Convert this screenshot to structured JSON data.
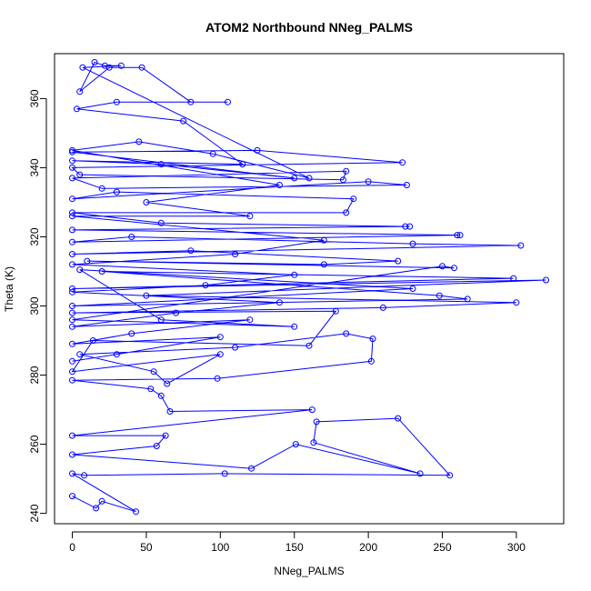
{
  "chart_data": {
    "type": "line",
    "title": "ATOM2 Northbound NNeg_PALMS",
    "xlabel": "NNeg_PALMS",
    "ylabel": "Theta (K)",
    "xlim": [
      -12,
      332
    ],
    "ylim": [
      237,
      373
    ],
    "x_ticks": [
      0,
      50,
      100,
      150,
      200,
      250,
      300
    ],
    "y_ticks": [
      240,
      260,
      280,
      300,
      320,
      340,
      360
    ],
    "grid": false,
    "legend": "none",
    "series_color": "#0000ff",
    "marker": "open-circle",
    "series": [
      {
        "values": [
          {
            "x": 0,
            "y": 245
          },
          {
            "x": 16,
            "y": 241.5
          },
          {
            "x": 20,
            "y": 243.5
          },
          {
            "x": 43,
            "y": 240.5
          },
          {
            "x": 0,
            "y": 251.5
          },
          {
            "x": 8,
            "y": 251
          },
          {
            "x": 103,
            "y": 251.5
          },
          {
            "x": 255,
            "y": 251
          },
          {
            "x": 220,
            "y": 267.5
          },
          {
            "x": 165,
            "y": 266.5
          },
          {
            "x": 163,
            "y": 260.5
          },
          {
            "x": 235,
            "y": 251.5
          },
          {
            "x": 151,
            "y": 260
          },
          {
            "x": 121,
            "y": 253
          },
          {
            "x": 0,
            "y": 257
          },
          {
            "x": 57,
            "y": 259.5
          },
          {
            "x": 63,
            "y": 262.5
          },
          {
            "x": 0,
            "y": 262.5
          },
          {
            "x": 162,
            "y": 270
          },
          {
            "x": 66,
            "y": 269.5
          },
          {
            "x": 60,
            "y": 274
          },
          {
            "x": 53,
            "y": 276
          },
          {
            "x": 0,
            "y": 278.5
          },
          {
            "x": 98,
            "y": 279
          },
          {
            "x": 202,
            "y": 284
          },
          {
            "x": 203,
            "y": 290.5
          },
          {
            "x": 185,
            "y": 292
          },
          {
            "x": 110,
            "y": 288
          },
          {
            "x": 5,
            "y": 286
          },
          {
            "x": 55,
            "y": 281
          },
          {
            "x": 64,
            "y": 277.5
          },
          {
            "x": 100,
            "y": 286
          },
          {
            "x": 0,
            "y": 281
          },
          {
            "x": 14,
            "y": 290
          },
          {
            "x": 160,
            "y": 288.5
          },
          {
            "x": 178,
            "y": 298.5
          },
          {
            "x": 0,
            "y": 298
          },
          {
            "x": 210,
            "y": 299.5
          },
          {
            "x": 300,
            "y": 301
          },
          {
            "x": 50,
            "y": 303
          },
          {
            "x": 320,
            "y": 307.5
          },
          {
            "x": 0,
            "y": 305
          },
          {
            "x": 298,
            "y": 308
          },
          {
            "x": 20,
            "y": 310
          },
          {
            "x": 248,
            "y": 303
          },
          {
            "x": 267,
            "y": 302
          },
          {
            "x": 0,
            "y": 300
          },
          {
            "x": 230,
            "y": 305
          },
          {
            "x": 5,
            "y": 310.5
          },
          {
            "x": 60,
            "y": 296
          },
          {
            "x": 150,
            "y": 294
          },
          {
            "x": 0,
            "y": 296
          },
          {
            "x": 250,
            "y": 311.5
          },
          {
            "x": 258,
            "y": 311
          },
          {
            "x": 10,
            "y": 313
          },
          {
            "x": 170,
            "y": 312
          },
          {
            "x": 220,
            "y": 313
          },
          {
            "x": 80,
            "y": 316
          },
          {
            "x": 0,
            "y": 315
          },
          {
            "x": 303,
            "y": 317.5
          },
          {
            "x": 230,
            "y": 318
          },
          {
            "x": 40,
            "y": 320
          },
          {
            "x": 0,
            "y": 318.5
          },
          {
            "x": 260,
            "y": 320.5
          },
          {
            "x": 262,
            "y": 320.5
          },
          {
            "x": 0,
            "y": 322
          },
          {
            "x": 225,
            "y": 323
          },
          {
            "x": 228,
            "y": 323
          },
          {
            "x": 60,
            "y": 324
          },
          {
            "x": 0,
            "y": 327
          },
          {
            "x": 185,
            "y": 327
          },
          {
            "x": 190,
            "y": 331
          },
          {
            "x": 30,
            "y": 333
          },
          {
            "x": 0,
            "y": 331
          },
          {
            "x": 200,
            "y": 336
          },
          {
            "x": 226,
            "y": 335
          },
          {
            "x": 20,
            "y": 334
          },
          {
            "x": 0,
            "y": 337
          },
          {
            "x": 185,
            "y": 339
          },
          {
            "x": 183,
            "y": 336.5
          },
          {
            "x": 5,
            "y": 338
          },
          {
            "x": 0,
            "y": 340
          },
          {
            "x": 223,
            "y": 341.5
          },
          {
            "x": 125,
            "y": 345
          },
          {
            "x": 0,
            "y": 344.5
          },
          {
            "x": 150,
            "y": 337
          },
          {
            "x": 60,
            "y": 341
          },
          {
            "x": 0,
            "y": 342
          },
          {
            "x": 115,
            "y": 341
          },
          {
            "x": 75,
            "y": 353.5
          },
          {
            "x": 3,
            "y": 357
          },
          {
            "x": 30,
            "y": 359
          },
          {
            "x": 105,
            "y": 359
          },
          {
            "x": 80,
            "y": 359
          },
          {
            "x": 47,
            "y": 369
          },
          {
            "x": 25,
            "y": 369
          },
          {
            "x": 5,
            "y": 362
          },
          {
            "x": 15,
            "y": 370.5
          },
          {
            "x": 22,
            "y": 369.5
          },
          {
            "x": 33,
            "y": 369.5
          },
          {
            "x": 7,
            "y": 369
          },
          {
            "x": 160,
            "y": 337
          },
          {
            "x": 95,
            "y": 344
          },
          {
            "x": 45,
            "y": 347.5
          },
          {
            "x": 0,
            "y": 345
          },
          {
            "x": 140,
            "y": 335
          },
          {
            "x": 50,
            "y": 330
          },
          {
            "x": 120,
            "y": 326
          },
          {
            "x": 0,
            "y": 326
          },
          {
            "x": 170,
            "y": 319
          },
          {
            "x": 110,
            "y": 315
          },
          {
            "x": 0,
            "y": 312
          },
          {
            "x": 150,
            "y": 309
          },
          {
            "x": 90,
            "y": 306
          },
          {
            "x": 0,
            "y": 304
          },
          {
            "x": 140,
            "y": 301
          },
          {
            "x": 70,
            "y": 298
          },
          {
            "x": 0,
            "y": 294
          },
          {
            "x": 120,
            "y": 296
          },
          {
            "x": 40,
            "y": 292
          },
          {
            "x": 0,
            "y": 289
          },
          {
            "x": 100,
            "y": 291
          },
          {
            "x": 30,
            "y": 286
          },
          {
            "x": 0,
            "y": 284
          }
        ]
      }
    ]
  }
}
